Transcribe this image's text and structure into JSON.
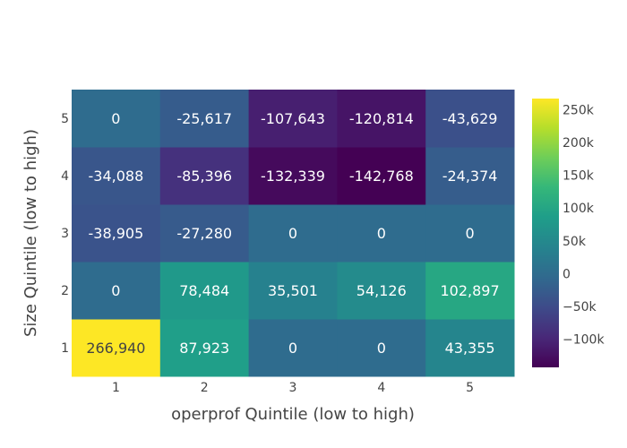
{
  "chart_data": {
    "type": "heatmap",
    "x_categories": [
      "1",
      "2",
      "3",
      "4",
      "5"
    ],
    "y_categories": [
      "1",
      "2",
      "3",
      "4",
      "5"
    ],
    "xlabel": "operprof Quintile (low to high)",
    "ylabel": "Size Quintile (low to high)",
    "z": [
      [
        266940,
        87923,
        0,
        0,
        43355
      ],
      [
        0,
        78484,
        35501,
        54126,
        102897
      ],
      [
        -38905,
        -27280,
        0,
        0,
        0
      ],
      [
        -34088,
        -85396,
        -132339,
        -142768,
        -24374
      ],
      [
        0,
        -25617,
        -107643,
        -120814,
        -43629
      ]
    ],
    "text": [
      [
        "266,940",
        "87,923",
        "0",
        "0",
        "43,355"
      ],
      [
        "0",
        "78,484",
        "35,501",
        "54,126",
        "102,897"
      ],
      [
        "-38,905",
        "-27,280",
        "0",
        "0",
        "0"
      ],
      [
        "-34,088",
        "-85,396",
        "-132,339",
        "-142,768",
        "-24,374"
      ],
      [
        "0",
        "-25,617",
        "-107,643",
        "-120,814",
        "-43,629"
      ]
    ],
    "zmin": -142768,
    "zmax": 266940,
    "colorscale": "Viridis",
    "colorbar_ticks": [
      {
        "value": 250000,
        "label": "250k"
      },
      {
        "value": 200000,
        "label": "200k"
      },
      {
        "value": 150000,
        "label": "150k"
      },
      {
        "value": 100000,
        "label": "100k"
      },
      {
        "value": 50000,
        "label": "50k"
      },
      {
        "value": 0,
        "label": "0"
      },
      {
        "value": -50000,
        "label": "−50k"
      },
      {
        "value": -100000,
        "label": "−100k"
      }
    ]
  }
}
